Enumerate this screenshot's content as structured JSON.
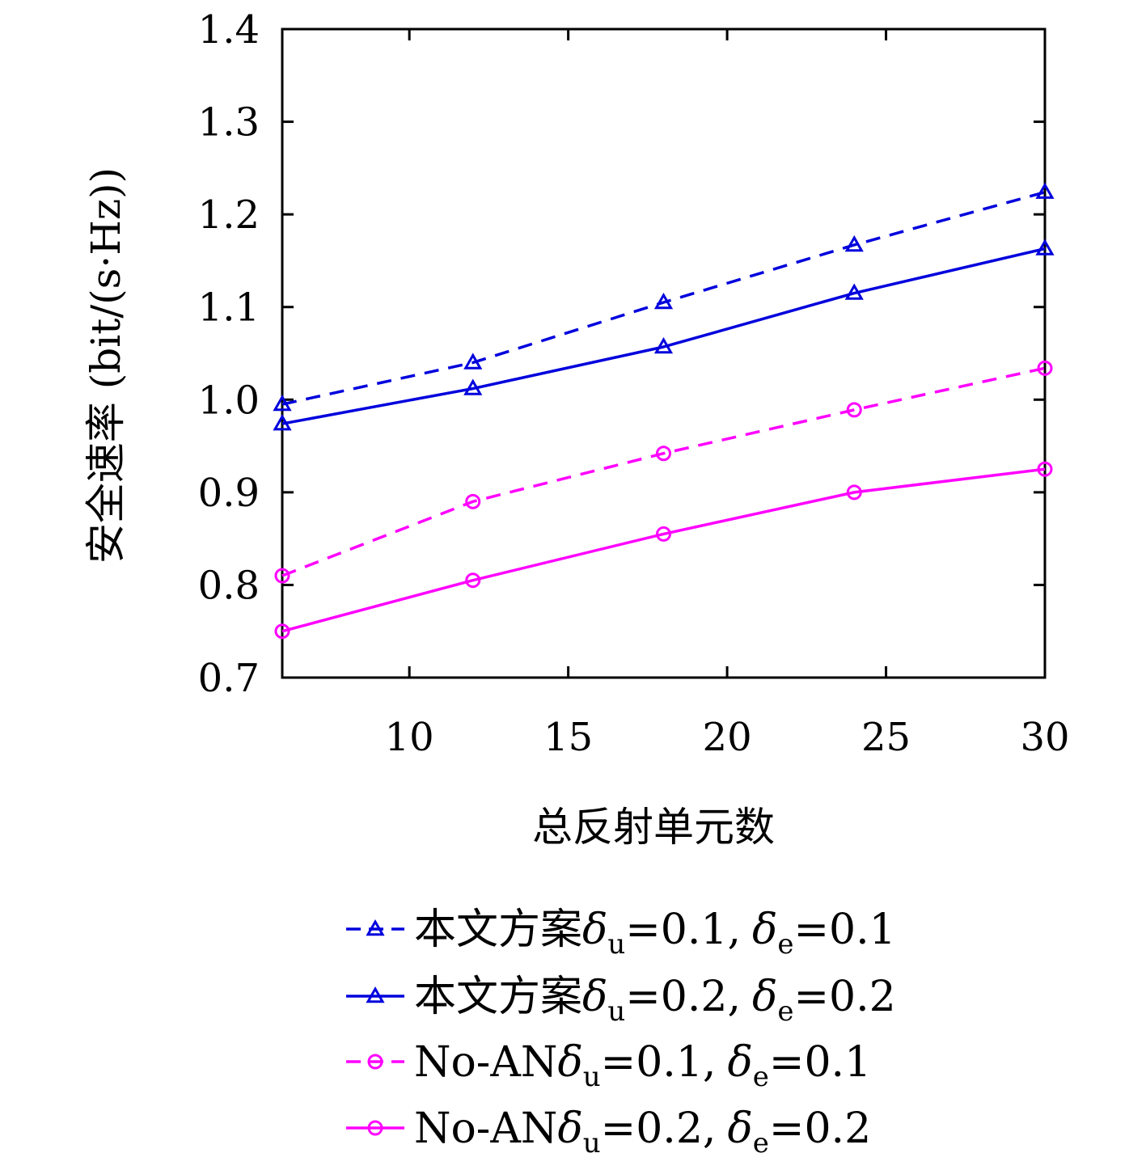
{
  "chart_data": {
    "type": "line",
    "title": "",
    "xlabel": "总反射单元数",
    "ylabel": "安全速率 (bit/(s·Hz))",
    "xlim": [
      6,
      30
    ],
    "ylim": [
      0.7,
      1.4
    ],
    "xticks": [
      "10",
      "15",
      "20",
      "25",
      "30"
    ],
    "yticks": [
      "0.7",
      "0.8",
      "0.9",
      "1.0",
      "1.1",
      "1.2",
      "1.3",
      "1.4"
    ],
    "x": [
      6,
      12,
      18,
      24,
      30
    ],
    "grid": false,
    "legend_position": "bottom",
    "series": [
      {
        "label_prefix": "本文方案",
        "label_params": [
          {
            "sym": "δ",
            "sub": "u",
            "eq": "=0.1,"
          },
          {
            "sym": "δ",
            "sub": "e",
            "eq": "=0.1"
          }
        ],
        "color": "#0000dd",
        "dash": true,
        "marker": "triangle",
        "values": [
          0.995,
          1.04,
          1.105,
          1.167,
          1.224
        ]
      },
      {
        "label_prefix": "本文方案",
        "label_params": [
          {
            "sym": "δ",
            "sub": "u",
            "eq": "=0.2,"
          },
          {
            "sym": "δ",
            "sub": "e",
            "eq": "=0.2"
          }
        ],
        "color": "#0000dd",
        "dash": false,
        "marker": "triangle",
        "values": [
          0.974,
          1.012,
          1.057,
          1.115,
          1.163
        ]
      },
      {
        "label_prefix": "No-AN",
        "label_params": [
          {
            "sym": "δ",
            "sub": "u",
            "eq": "=0.1,"
          },
          {
            "sym": "δ",
            "sub": "e",
            "eq": "=0.1"
          }
        ],
        "color": "#ff00ff",
        "dash": true,
        "marker": "circle",
        "values": [
          0.81,
          0.89,
          0.942,
          0.989,
          1.034
        ]
      },
      {
        "label_prefix": "No-AN",
        "label_params": [
          {
            "sym": "δ",
            "sub": "u",
            "eq": "=0.2,"
          },
          {
            "sym": "δ",
            "sub": "e",
            "eq": "=0.2"
          }
        ],
        "color": "#ff00ff",
        "dash": false,
        "marker": "circle",
        "values": [
          0.75,
          0.805,
          0.855,
          0.9,
          0.925
        ]
      }
    ]
  }
}
